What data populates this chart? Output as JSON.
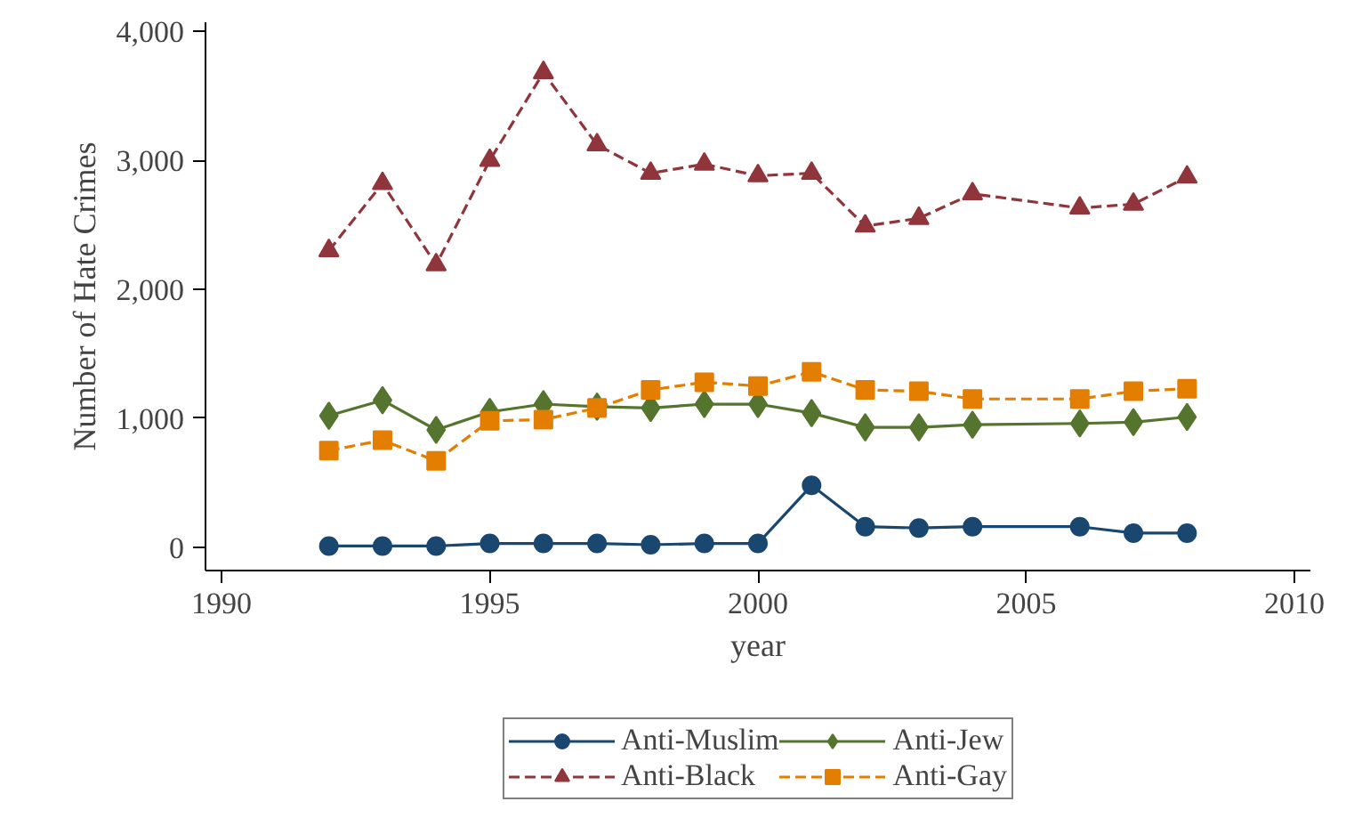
{
  "chart_data": {
    "type": "line",
    "xlabel": "year",
    "ylabel": "Number of Hate Crimes",
    "x": [
      1992,
      1993,
      1994,
      1995,
      1996,
      1997,
      1998,
      1999,
      2000,
      2001,
      2002,
      2003,
      2004,
      2006,
      2007,
      2008
    ],
    "series": [
      {
        "name": "Anti-Muslim",
        "color": "#1a476f",
        "marker": "circle",
        "line_style": "solid",
        "values": [
          10,
          10,
          10,
          30,
          30,
          30,
          20,
          30,
          30,
          480,
          160,
          150,
          160,
          160,
          110,
          110
        ]
      },
      {
        "name": "Anti-Black",
        "color": "#90353b",
        "marker": "triangle",
        "line_style": "dashed",
        "values": [
          2300,
          2820,
          2190,
          3000,
          3680,
          3120,
          2900,
          2970,
          2880,
          2900,
          2490,
          2550,
          2740,
          2630,
          2660,
          2870
        ]
      },
      {
        "name": "Anti-Jew",
        "color": "#55752f",
        "marker": "diamond",
        "line_style": "solid",
        "values": [
          1020,
          1140,
          910,
          1050,
          1110,
          1090,
          1080,
          1110,
          1110,
          1040,
          930,
          930,
          950,
          960,
          970,
          1010
        ]
      },
      {
        "name": "Anti-Gay",
        "color": "#e37e00",
        "marker": "square",
        "line_style": "dashed",
        "values": [
          750,
          830,
          670,
          980,
          990,
          1080,
          1220,
          1280,
          1250,
          1360,
          1220,
          1210,
          1150,
          1150,
          1210,
          1230
        ]
      }
    ],
    "xlim": [
      1989.7,
      2010.3
    ],
    "ylim": [
      -180,
      4070
    ],
    "xticks": [
      1990,
      1995,
      2000,
      2005,
      2010
    ],
    "yticks": [
      {
        "value": 0,
        "label": "0"
      },
      {
        "value": 1000,
        "label": "1,000"
      },
      {
        "value": 2000,
        "label": "2,000"
      },
      {
        "value": 3000,
        "label": "3,000"
      },
      {
        "value": 4000,
        "label": "4,000"
      }
    ],
    "grid": false,
    "legend": "bottom"
  }
}
